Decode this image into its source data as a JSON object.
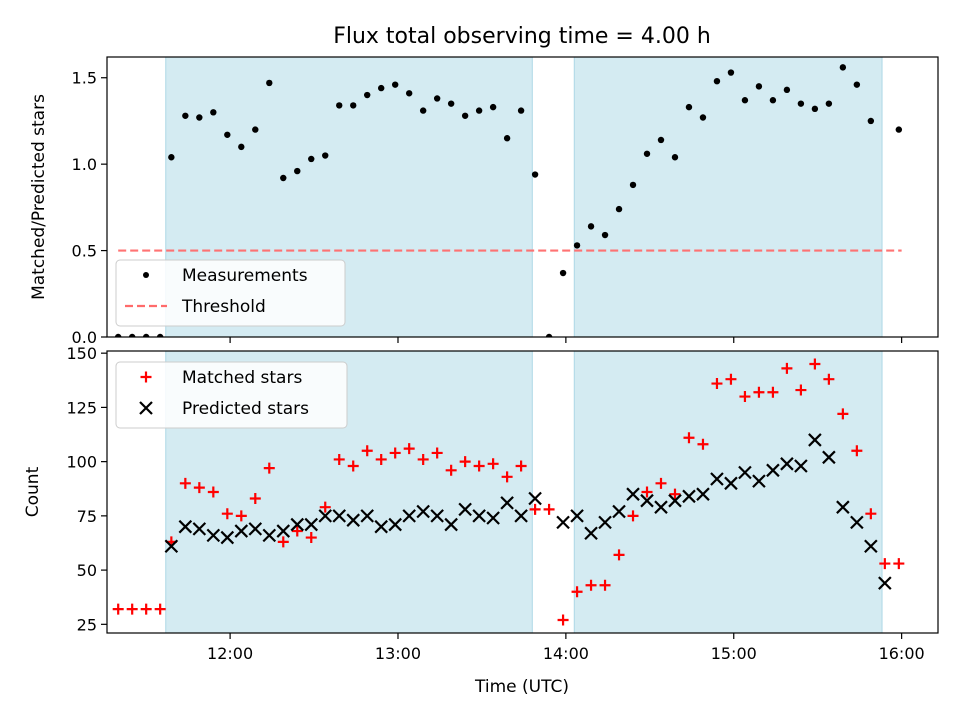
{
  "chart_data": [
    {
      "type": "scatter",
      "title": "Flux total observing time = 4.00 h",
      "xlabel": "",
      "ylabel": "Matched/Predicted stars",
      "ylim": [
        0,
        1.62
      ],
      "yticks": [
        "0.0",
        "0.5",
        "1.0",
        "1.5"
      ],
      "ytick_values": [
        0,
        0.5,
        1.0,
        1.5
      ],
      "xlim": [
        "11:16",
        "16:13"
      ],
      "grid": false,
      "legend_position": "lower-left",
      "shaded_intervals": [
        [
          "11:37",
          "13:48"
        ],
        [
          "14:03",
          "15:53"
        ]
      ],
      "threshold": {
        "name": "Threshold",
        "value": 0.5,
        "x_range": [
          "11:20",
          "16:00"
        ],
        "color": "#ff6b6b"
      },
      "series": [
        {
          "name": "Measurements",
          "color": "#000000",
          "marker": "dot",
          "x": [
            "11:20",
            "11:25",
            "11:30",
            "11:35",
            "11:39",
            "11:44",
            "11:49",
            "11:54",
            "11:59",
            "12:04",
            "12:09",
            "12:14",
            "12:19",
            "12:24",
            "12:29",
            "12:34",
            "12:39",
            "12:44",
            "12:49",
            "12:54",
            "12:59",
            "13:04",
            "13:09",
            "13:14",
            "13:19",
            "13:24",
            "13:29",
            "13:34",
            "13:39",
            "13:44",
            "13:49",
            "13:54",
            "13:59",
            "14:04",
            "14:09",
            "14:14",
            "14:19",
            "14:24",
            "14:29",
            "14:34",
            "14:39",
            "14:44",
            "14:49",
            "14:54",
            "14:59",
            "15:04",
            "15:09",
            "15:14",
            "15:19",
            "15:24",
            "15:29",
            "15:34",
            "15:39",
            "15:44",
            "15:49",
            "15:59"
          ],
          "values": [
            0.0,
            0.0,
            0.0,
            0.0,
            1.04,
            1.28,
            1.27,
            1.3,
            1.17,
            1.1,
            1.2,
            1.47,
            0.92,
            0.96,
            1.03,
            1.05,
            1.34,
            1.34,
            1.4,
            1.44,
            1.46,
            1.41,
            1.31,
            1.38,
            1.35,
            1.28,
            1.31,
            1.33,
            1.15,
            1.31,
            0.94,
            0.0,
            0.37,
            0.53,
            0.64,
            0.59,
            0.74,
            0.88,
            1.06,
            1.14,
            1.04,
            1.33,
            1.27,
            1.48,
            1.53,
            1.37,
            1.45,
            1.37,
            1.43,
            1.35,
            1.32,
            1.35,
            1.56,
            1.46,
            1.25,
            1.2
          ]
        }
      ]
    },
    {
      "type": "scatter",
      "title": "",
      "xlabel": "Time (UTC)",
      "ylabel": "Count",
      "ylim": [
        21,
        151
      ],
      "yticks": [
        "25",
        "50",
        "75",
        "100",
        "125",
        "150"
      ],
      "ytick_values": [
        25,
        50,
        75,
        100,
        125,
        150
      ],
      "xticks": [
        "12:00",
        "13:00",
        "14:00",
        "15:00",
        "16:00"
      ],
      "xlim": [
        "11:16",
        "16:13"
      ],
      "grid": false,
      "legend_position": "upper-left",
      "shaded_intervals": [
        [
          "11:37",
          "13:48"
        ],
        [
          "14:03",
          "15:53"
        ]
      ],
      "series": [
        {
          "name": "Matched stars",
          "color": "#ff0000",
          "marker": "plus",
          "x": [
            "11:20",
            "11:25",
            "11:30",
            "11:35",
            "11:39",
            "11:44",
            "11:49",
            "11:54",
            "11:59",
            "12:04",
            "12:09",
            "12:14",
            "12:19",
            "12:24",
            "12:29",
            "12:34",
            "12:39",
            "12:44",
            "12:49",
            "12:54",
            "12:59",
            "13:04",
            "13:09",
            "13:14",
            "13:19",
            "13:24",
            "13:29",
            "13:34",
            "13:39",
            "13:44",
            "13:49",
            "13:54",
            "13:59",
            "14:04",
            "14:09",
            "14:14",
            "14:19",
            "14:24",
            "14:29",
            "14:34",
            "14:39",
            "14:44",
            "14:49",
            "14:54",
            "14:59",
            "15:04",
            "15:09",
            "15:14",
            "15:19",
            "15:24",
            "15:29",
            "15:34",
            "15:39",
            "15:44",
            "15:49",
            "15:54",
            "15:59"
          ],
          "values": [
            32,
            32,
            32,
            32,
            63,
            90,
            88,
            86,
            76,
            75,
            83,
            97,
            63,
            68,
            65,
            79,
            101,
            98,
            105,
            101,
            104,
            106,
            101,
            104,
            96,
            100,
            98,
            99,
            93,
            98,
            78,
            78,
            27,
            40,
            43,
            43,
            57,
            75,
            86,
            90,
            85,
            111,
            108,
            136,
            138,
            130,
            132,
            132,
            143,
            133,
            145,
            138,
            122,
            105,
            76,
            53,
            53
          ]
        },
        {
          "name": "Predicted stars",
          "color": "#000000",
          "marker": "x",
          "x": [
            "11:39",
            "11:44",
            "11:49",
            "11:54",
            "11:59",
            "12:04",
            "12:09",
            "12:14",
            "12:19",
            "12:24",
            "12:29",
            "12:34",
            "12:39",
            "12:44",
            "12:49",
            "12:54",
            "12:59",
            "13:04",
            "13:09",
            "13:14",
            "13:19",
            "13:24",
            "13:29",
            "13:34",
            "13:39",
            "13:44",
            "13:49",
            "13:59",
            "14:04",
            "14:09",
            "14:14",
            "14:19",
            "14:24",
            "14:29",
            "14:34",
            "14:39",
            "14:44",
            "14:49",
            "14:54",
            "14:59",
            "15:04",
            "15:09",
            "15:14",
            "15:19",
            "15:24",
            "15:29",
            "15:34",
            "15:39",
            "15:44",
            "15:49",
            "15:54"
          ],
          "values": [
            61,
            70,
            69,
            66,
            65,
            68,
            69,
            66,
            68,
            71,
            71,
            75,
            75,
            73,
            75,
            70,
            71,
            75,
            77,
            75,
            71,
            78,
            75,
            74,
            81,
            75,
            83,
            72,
            75,
            67,
            72,
            77,
            85,
            82,
            79,
            82,
            84,
            85,
            92,
            90,
            95,
            91,
            96,
            99,
            98,
            110,
            102,
            79,
            72,
            61,
            44
          ]
        }
      ]
    }
  ]
}
